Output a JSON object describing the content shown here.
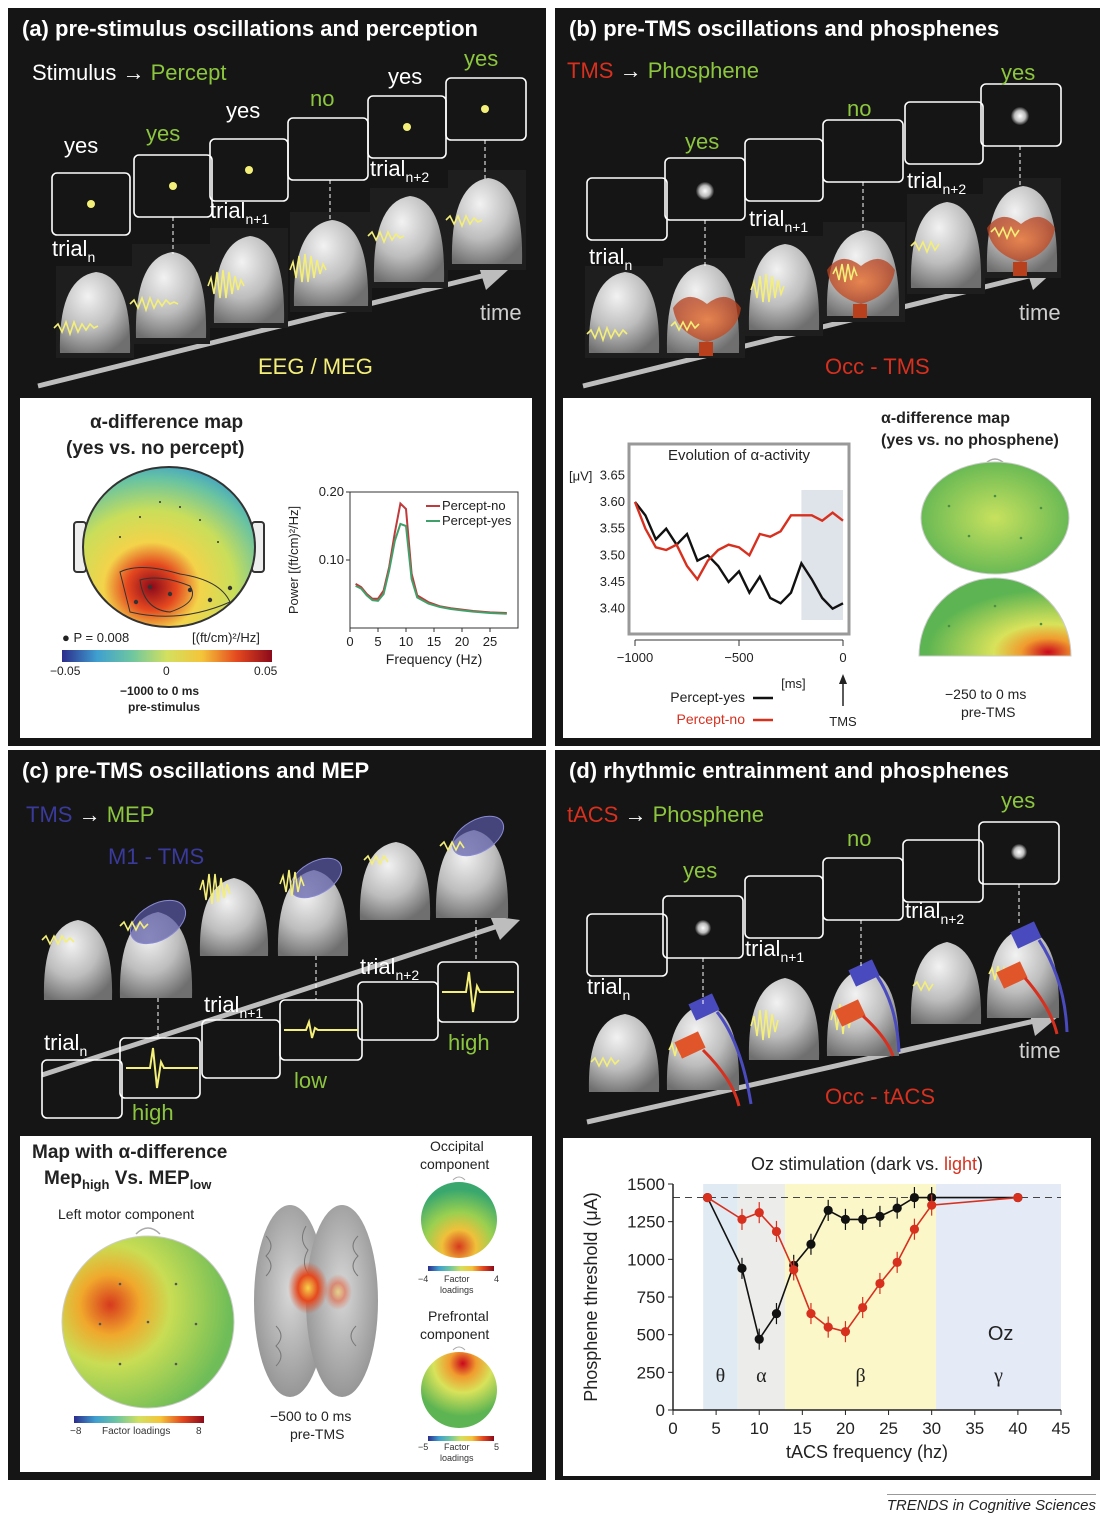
{
  "panels": {
    "a": {
      "title": "(a) pre-stimulus oscillations and perception",
      "legend_stim": "Stimulus",
      "legend_arrow": "→",
      "legend_percept": "Percept",
      "answers": [
        "yes",
        "yes",
        "yes",
        "no",
        "yes",
        "yes"
      ],
      "trials": [
        {
          "base": "trial",
          "sub": "n"
        },
        {
          "base": "trial",
          "sub": "n+1"
        },
        {
          "base": "trial",
          "sub": "n+2"
        }
      ],
      "time_label": "time",
      "method": "EEG / MEG",
      "map_title_line1": "α-difference map",
      "map_title_line2": "(yes vs. no percept)",
      "p_label": "P = 0.008",
      "units": "[(ft/cm)²/Hz]",
      "cbar_ticks": [
        "−0.05",
        "0",
        "0.05"
      ],
      "window_line1": "−1000 to 0 ms",
      "window_line2": "pre-stimulus"
    },
    "b": {
      "title": "(b) pre-TMS oscillations and phosphenes",
      "legend_tms": "TMS",
      "legend_arrow": "→",
      "legend_phosphene": "Phosphene",
      "answers": [
        "yes",
        "no",
        "yes"
      ],
      "trials": [
        {
          "base": "trial",
          "sub": "n"
        },
        {
          "base": "trial",
          "sub": "n+1"
        },
        {
          "base": "trial",
          "sub": "n+2"
        }
      ],
      "time_label": "time",
      "method": "Occ - TMS",
      "map_title_line1": "α-difference map",
      "map_title_line2": "(yes vs. no phosphene)",
      "window_line1": "−250 to 0 ms",
      "window_line2": "pre-TMS",
      "tms_label": "TMS"
    },
    "c": {
      "title": "(c) pre-TMS oscillations and MEP",
      "legend_tms": "TMS",
      "legend_arrow": "→",
      "legend_mep": "MEP",
      "site": "M1 - TMS",
      "trials": [
        {
          "base": "trial",
          "sub": "n"
        },
        {
          "base": "trial",
          "sub": "n+1"
        },
        {
          "base": "trial",
          "sub": "n+2"
        }
      ],
      "levels": [
        "high",
        "low",
        "high"
      ],
      "map_title_line1": "Map with α-difference",
      "map_title_line2_a": "Mep",
      "map_title_line2_a_sub": "high",
      "map_title_line2_b": " Vs. MEP",
      "map_title_line2_b_sub": "low",
      "left_motor": "Left motor component",
      "occipital_line1": "Occipital",
      "occipital_line2": "component",
      "prefrontal_line1": "Prefrontal",
      "prefrontal_line2": "component",
      "factor_loadings": "Factor loadings",
      "factor_line1": "Factor",
      "factor_line2": "loadings",
      "cbar_main": [
        "−8",
        "8"
      ],
      "cbar_occ": [
        "−4",
        "4"
      ],
      "cbar_pre": [
        "−5",
        "5"
      ],
      "window_line1": "−500 to 0 ms",
      "window_line2": "pre-TMS"
    },
    "d": {
      "title": "(d) rhythmic entrainment and phosphenes",
      "legend_tacs": "tACS",
      "legend_arrow": "→",
      "legend_phosphene": "Phosphene",
      "answers": [
        "yes",
        "no",
        "yes"
      ],
      "trials": [
        {
          "base": "trial",
          "sub": "n"
        },
        {
          "base": "trial",
          "sub": "n+1"
        },
        {
          "base": "trial",
          "sub": "n+2"
        }
      ],
      "time_label": "time",
      "method": "Occ - tACS"
    }
  },
  "colors": {
    "green": "#8cc63e",
    "red": "#d7301f",
    "blue": "#3a3a9c",
    "yellow": "#f4ef78",
    "bg": "#151515"
  },
  "footer": "TRENDS in Cognitive Sciences",
  "chart_data": [
    {
      "type": "line",
      "x": [
        1,
        2,
        3,
        4,
        5,
        6,
        7,
        8,
        9,
        10,
        11,
        12,
        14,
        16,
        18,
        20,
        22,
        25,
        28
      ],
      "series": [
        {
          "name": "Percept-no",
          "color": "#c0393b",
          "values": [
            0.065,
            0.06,
            0.05,
            0.043,
            0.043,
            0.055,
            0.09,
            0.14,
            0.183,
            0.175,
            0.08,
            0.048,
            0.038,
            0.032,
            0.029,
            0.027,
            0.025,
            0.023,
            0.022
          ]
        },
        {
          "name": "Percept-yes",
          "color": "#41a06a",
          "values": [
            0.062,
            0.058,
            0.048,
            0.041,
            0.04,
            0.05,
            0.085,
            0.128,
            0.153,
            0.15,
            0.072,
            0.045,
            0.036,
            0.031,
            0.028,
            0.026,
            0.024,
            0.022,
            0.021
          ]
        }
      ],
      "xlabel": "Frequency (Hz)",
      "ylabel": "Power [(ft/cm)²/Hz]",
      "xticks": [
        "0",
        "5",
        "10",
        "15",
        "20",
        "25"
      ],
      "yticks": [
        "0.10",
        "0.20"
      ],
      "xlim": [
        0,
        30
      ],
      "ylim": [
        0,
        0.2
      ]
    },
    {
      "type": "line",
      "title": "Evolution of α-activity",
      "x": [
        -1000,
        -950,
        -900,
        -850,
        -800,
        -750,
        -700,
        -650,
        -600,
        -550,
        -500,
        -450,
        -400,
        -350,
        -300,
        -250,
        -200,
        -150,
        -100,
        -50,
        0
      ],
      "series": [
        {
          "name": "Percept-yes",
          "color": "#111111",
          "values": [
            3.6,
            3.575,
            3.53,
            3.55,
            3.52,
            3.54,
            3.49,
            3.5,
            3.48,
            3.45,
            3.47,
            3.43,
            3.46,
            3.42,
            3.41,
            3.43,
            3.485,
            3.455,
            3.42,
            3.4,
            3.41
          ]
        },
        {
          "name": "Percept-no",
          "color": "#d7301f",
          "values": [
            3.6,
            3.55,
            3.515,
            3.51,
            3.52,
            3.48,
            3.455,
            3.49,
            3.51,
            3.52,
            3.515,
            3.5,
            3.54,
            3.535,
            3.545,
            3.575,
            3.575,
            3.575,
            3.565,
            3.58,
            3.565
          ]
        }
      ],
      "ylabel": "[μV]",
      "xlabel": "[ms]",
      "xticks": [
        "−1000",
        "−500",
        "0"
      ],
      "yticks": [
        "3.40",
        "3.45",
        "3.50",
        "3.55",
        "3.60",
        "3.65"
      ],
      "xlim": [
        -1000,
        0
      ],
      "ylim": [
        3.36,
        3.66
      ]
    },
    {
      "type": "line",
      "title_prefix": "Oz stimulation (dark vs. ",
      "title_light": "light",
      "title_suffix": ")",
      "x": [
        4,
        6,
        8,
        10,
        12,
        14,
        16,
        18,
        20,
        22,
        24,
        26,
        28,
        30,
        40
      ],
      "series": [
        {
          "name": "dark",
          "color": "#111111",
          "values": [
            1410,
            null,
            940,
            470,
            640,
            960,
            1100,
            1325,
            1265,
            1265,
            1285,
            1340,
            1410,
            1410,
            1410
          ]
        },
        {
          "name": "light",
          "color": "#d7301f",
          "values": [
            1410,
            null,
            1265,
            1310,
            1185,
            930,
            640,
            550,
            520,
            680,
            840,
            980,
            1200,
            1360,
            1410
          ]
        }
      ],
      "xlabel": "tACS frequency (hz)",
      "ylabel": "Phosphene threshold (μA)",
      "xticks": [
        "0",
        "5",
        "10",
        "15",
        "20",
        "25",
        "30",
        "35",
        "40",
        "45"
      ],
      "yticks": [
        "0",
        "250",
        "500",
        "750",
        "1000",
        "1250",
        "1500"
      ],
      "xlim": [
        0,
        45
      ],
      "ylim": [
        0,
        1500
      ],
      "reference_line": 1410,
      "bands": [
        {
          "label": "θ",
          "from": 3.5,
          "to": 7.5
        },
        {
          "label": "α",
          "from": 7.5,
          "to": 13
        },
        {
          "label": "β",
          "from": 13,
          "to": 30.5
        },
        {
          "label": "γ",
          "from": 30.5,
          "to": 45
        }
      ],
      "annotation": "Oz"
    }
  ]
}
